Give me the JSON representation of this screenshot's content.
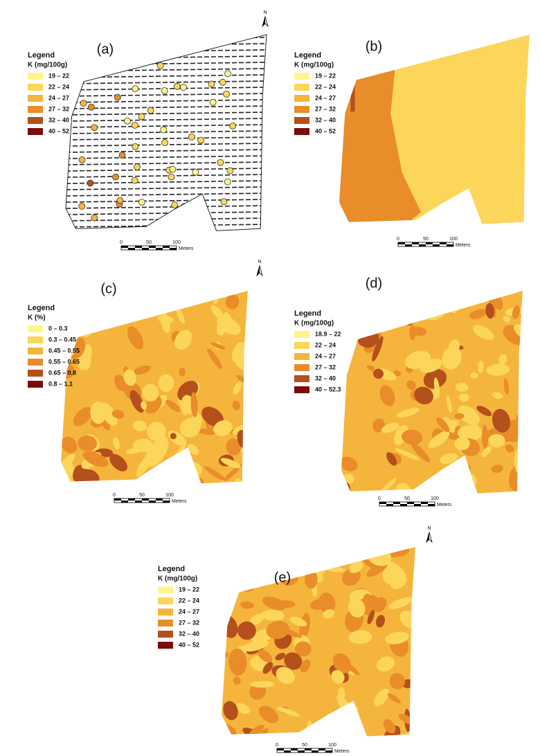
{
  "north_label": "N",
  "class_colors": [
    "#fdf58a",
    "#fbd65a",
    "#f5b53d",
    "#e88d2a",
    "#b4501b",
    "#7a0c0c"
  ],
  "panels": [
    {
      "label": "(a)",
      "legend": {
        "title": "Legend",
        "unit": "K (mg/100g)",
        "classes": [
          "19 – 22",
          "22 – 24",
          "24 – 27",
          "27 – 32",
          "32 – 40",
          "40 – 52"
        ]
      },
      "scale": {
        "ticks": [
          0,
          50,
          100
        ],
        "unit": "Meters"
      }
    },
    {
      "label": "(b)",
      "legend": {
        "title": "Legend",
        "unit": "K (mg/100g)",
        "classes": [
          "19 – 22",
          "22 – 24",
          "24 – 27",
          "27 – 32",
          "32 – 40",
          "40 – 52"
        ]
      },
      "scale": {
        "ticks": [
          0,
          50,
          100
        ],
        "unit": "Meters"
      }
    },
    {
      "label": "(c)",
      "legend": {
        "title": "Legend",
        "unit": "K (%)",
        "classes": [
          "0 – 0.3",
          "0.3 – 0.45",
          "0.45 – 0.55",
          "0.55 – 0.65",
          "0.65 – 0.8",
          "0.8 – 1.1"
        ]
      },
      "scale": {
        "ticks": [
          0,
          50,
          100
        ],
        "unit": "Meters"
      }
    },
    {
      "label": "(d)",
      "legend": {
        "title": "Legend",
        "unit": "K (mg/100g)",
        "classes": [
          "18.9 – 22",
          "22 – 24",
          "24 – 27",
          "27 – 32",
          "32 – 40",
          "40 – 52.3"
        ]
      },
      "scale": {
        "ticks": [
          0,
          50,
          100
        ],
        "unit": "Meters"
      }
    },
    {
      "label": "(e)",
      "legend": {
        "title": "Legend",
        "unit": "K (mg/100g)",
        "classes": [
          "19 – 22",
          "22 – 24",
          "24 – 27",
          "27 – 32",
          "32 – 40",
          "40 – 52"
        ]
      },
      "scale": {
        "ticks": [
          0,
          50,
          100
        ],
        "unit": "Meters"
      }
    }
  ]
}
